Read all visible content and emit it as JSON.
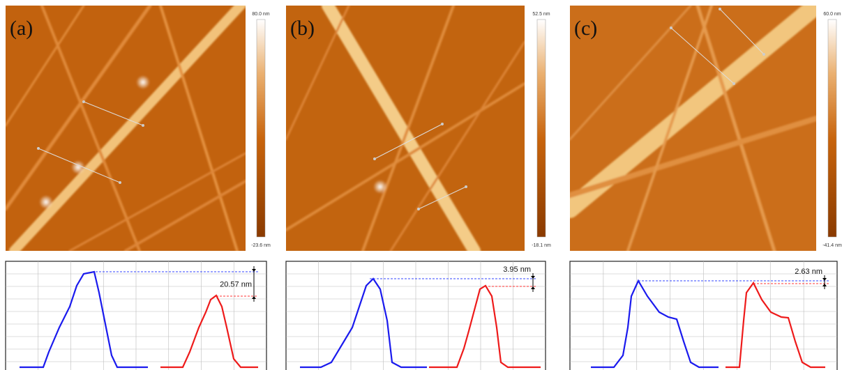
{
  "panels": [
    {
      "label": "(a)",
      "scale_max": "80.0 nm",
      "scale_min": "-23.6 nm",
      "step": "20.57 nm"
    },
    {
      "label": "(b)",
      "scale_max": "52.5 nm",
      "scale_min": "-18.1 nm",
      "step": "3.95 nm"
    },
    {
      "label": "(c)",
      "scale_max": "60.0 nm",
      "scale_min": "-41.4 nm",
      "step": "2.63 nm"
    }
  ]
}
